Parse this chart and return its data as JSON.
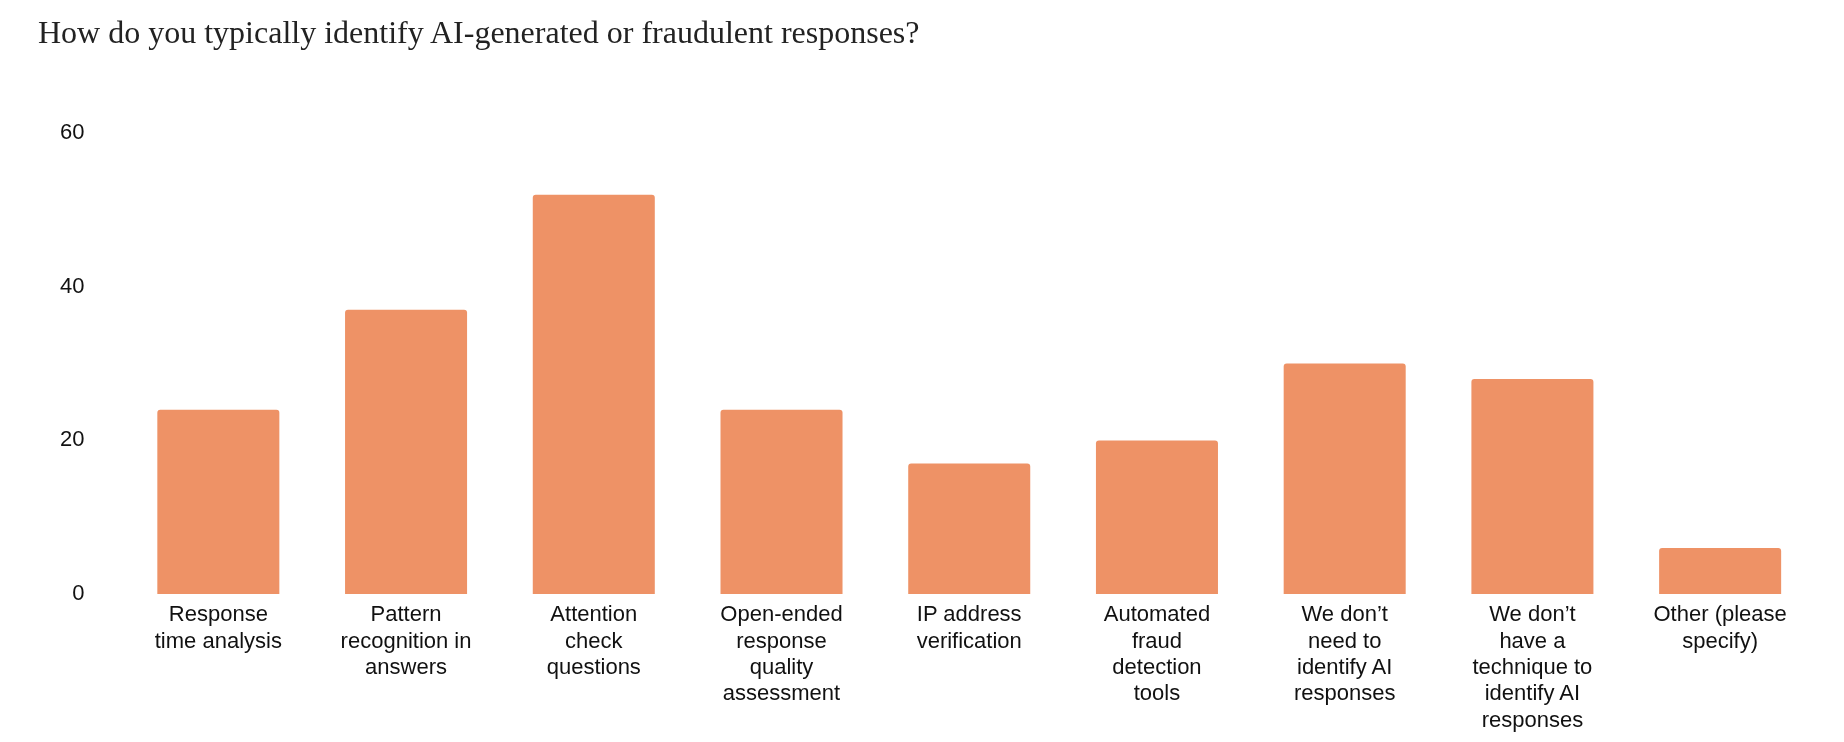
{
  "chart_data": {
    "type": "bar",
    "title": "How do you typically identify AI-generated or fraudulent responses?",
    "categories": [
      "Response time analysis",
      "Pattern recognition in answers",
      "Attention check questions",
      "Open-ended response quality assessment",
      "IP address verification",
      "Automated fraud detection tools",
      "We don’t need to identify AI responses",
      "We don’t have a technique to identify AI responses",
      "Other (please specify)"
    ],
    "values": [
      24,
      37,
      52,
      24,
      17,
      20,
      30,
      28,
      6
    ],
    "color": "#ee9266",
    "ylim": [
      0,
      60
    ],
    "yticks": [
      0,
      20,
      40,
      60
    ],
    "grid": false,
    "legend": false
  }
}
